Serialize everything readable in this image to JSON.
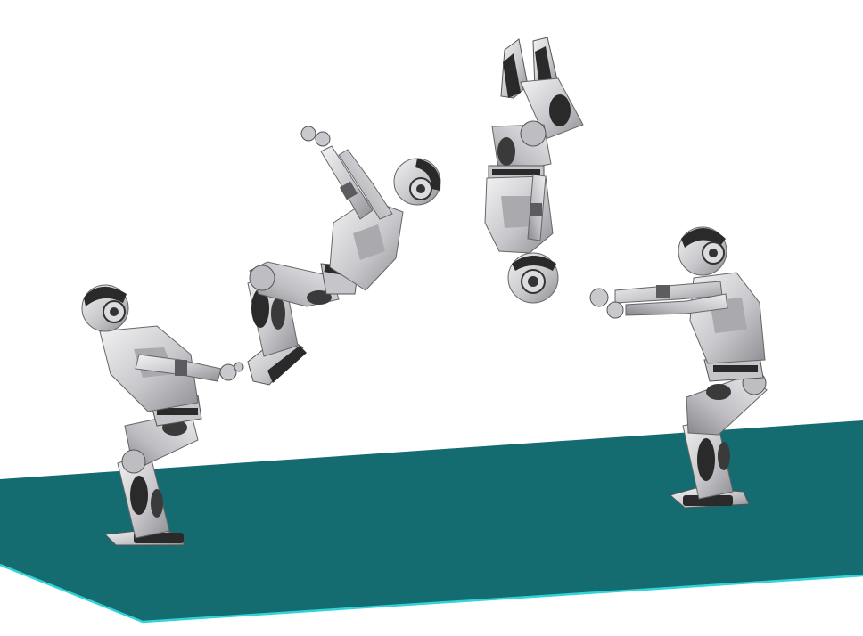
{
  "scene": {
    "colors": {
      "background": "#ffffff",
      "floor": "#146b70",
      "floor_edge": "#2fd3d8",
      "robot_body": "#d4d4d6",
      "robot_shade": "#9a9a9e",
      "robot_dark": "#2a2a2a",
      "robot_joint": "#5c5c60"
    },
    "frames": [
      {
        "phase": "crouch-takeoff",
        "facing": "right"
      },
      {
        "phase": "airborne-rotation",
        "facing": "right"
      },
      {
        "phase": "inverted",
        "facing": "right"
      },
      {
        "phase": "landing-crouch",
        "facing": "left"
      }
    ]
  }
}
